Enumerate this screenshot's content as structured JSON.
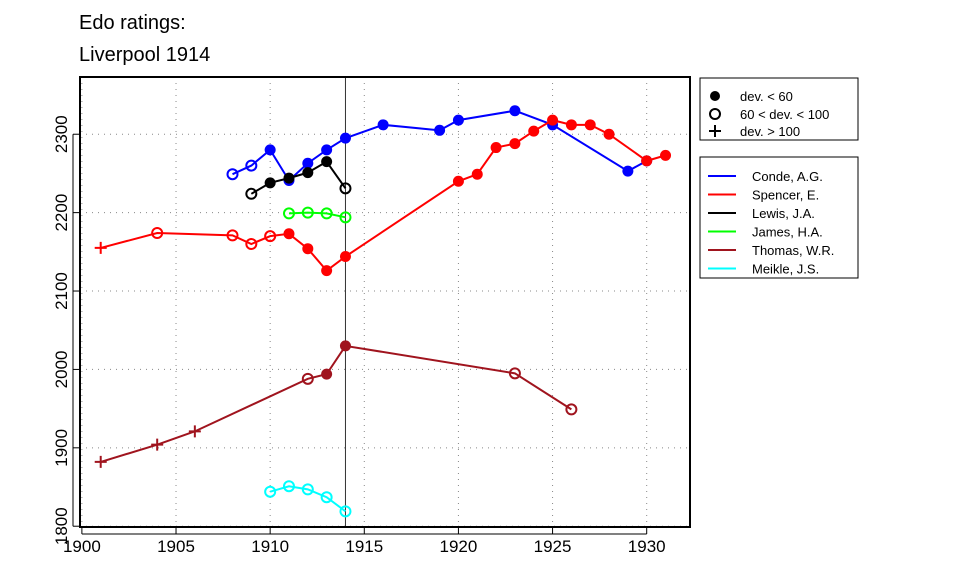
{
  "chart_data": {
    "type": "line",
    "title": "Edo ratings:",
    "subtitle": "Liverpool 1914",
    "xlabel": "",
    "ylabel": "",
    "xlim": [
      1899.9,
      1932.3
    ],
    "ylim": [
      1799,
      2373
    ],
    "x_ticks": [
      1900,
      1905,
      1910,
      1915,
      1920,
      1925,
      1930
    ],
    "y_ticks": [
      1800,
      1900,
      2000,
      2100,
      2200,
      2300
    ],
    "grid": "dotted",
    "reference_line_x": 1914,
    "marker_legend": [
      {
        "label": "dev. < 60",
        "marker": "filled"
      },
      {
        "label": "60 < dev. < 100",
        "marker": "open"
      },
      {
        "label": "dev. > 100",
        "marker": "plus"
      }
    ],
    "series": [
      {
        "name": "Conde, A.G.",
        "color": "#0000ff",
        "points": [
          [
            1908,
            2249,
            "open"
          ],
          [
            1909,
            2260,
            "open"
          ],
          [
            1910,
            2280,
            "filled"
          ],
          [
            1911,
            2241,
            "filled"
          ],
          [
            1912,
            2263,
            "filled"
          ],
          [
            1913,
            2280,
            "filled"
          ],
          [
            1914,
            2295,
            "filled"
          ],
          [
            1916,
            2312,
            "filled"
          ],
          [
            1919,
            2305,
            "filled"
          ],
          [
            1920,
            2318,
            "filled"
          ],
          [
            1923,
            2330,
            "filled"
          ],
          [
            1925,
            2312,
            "filled"
          ],
          [
            1929,
            2253,
            "filled"
          ],
          [
            1930,
            2266,
            "filled"
          ]
        ]
      },
      {
        "name": "Spencer, E.",
        "color": "#ff0000",
        "points": [
          [
            1901,
            2155,
            "plus"
          ],
          [
            1904,
            2174,
            "open"
          ],
          [
            1908,
            2171,
            "open"
          ],
          [
            1909,
            2160,
            "open"
          ],
          [
            1910,
            2170,
            "open"
          ],
          [
            1911,
            2173,
            "filled"
          ],
          [
            1912,
            2154,
            "filled"
          ],
          [
            1913,
            2126,
            "filled"
          ],
          [
            1914,
            2144,
            "filled"
          ],
          [
            1920,
            2240,
            "filled"
          ],
          [
            1921,
            2249,
            "filled"
          ],
          [
            1922,
            2283,
            "filled"
          ],
          [
            1923,
            2288,
            "filled"
          ],
          [
            1924,
            2304,
            "filled"
          ],
          [
            1925,
            2318,
            "filled"
          ],
          [
            1926,
            2312,
            "filled"
          ],
          [
            1927,
            2312,
            "filled"
          ],
          [
            1928,
            2300,
            "filled"
          ],
          [
            1930,
            2266,
            "filled"
          ],
          [
            1931,
            2273,
            "filled"
          ]
        ]
      },
      {
        "name": "Lewis, J.A.",
        "color": "#000000",
        "points": [
          [
            1909,
            2224,
            "open"
          ],
          [
            1910,
            2238,
            "filled"
          ],
          [
            1911,
            2244,
            "filled"
          ],
          [
            1912,
            2251,
            "filled"
          ],
          [
            1913,
            2265,
            "filled"
          ],
          [
            1914,
            2231,
            "open"
          ]
        ]
      },
      {
        "name": "James, H.A.",
        "color": "#00ff00",
        "points": [
          [
            1911,
            2199,
            "open"
          ],
          [
            1912,
            2200,
            "open"
          ],
          [
            1913,
            2199,
            "open"
          ],
          [
            1914,
            2194,
            "open"
          ]
        ]
      },
      {
        "name": "Thomas, W.R.",
        "color": "#a0141e",
        "points": [
          [
            1901,
            1882,
            "plus"
          ],
          [
            1904,
            1904,
            "plus"
          ],
          [
            1906,
            1921,
            "plus"
          ],
          [
            1912,
            1988,
            "open"
          ],
          [
            1913,
            1994,
            "filled"
          ],
          [
            1914,
            2030,
            "filled"
          ],
          [
            1923,
            1995,
            "open"
          ],
          [
            1926,
            1949,
            "open"
          ]
        ]
      },
      {
        "name": "Meikle, J.S.",
        "color": "#00ffff",
        "points": [
          [
            1910,
            1844,
            "open"
          ],
          [
            1911,
            1851,
            "open"
          ],
          [
            1912,
            1847,
            "open"
          ],
          [
            1913,
            1837,
            "open"
          ],
          [
            1914,
            1819,
            "open"
          ]
        ]
      }
    ]
  }
}
